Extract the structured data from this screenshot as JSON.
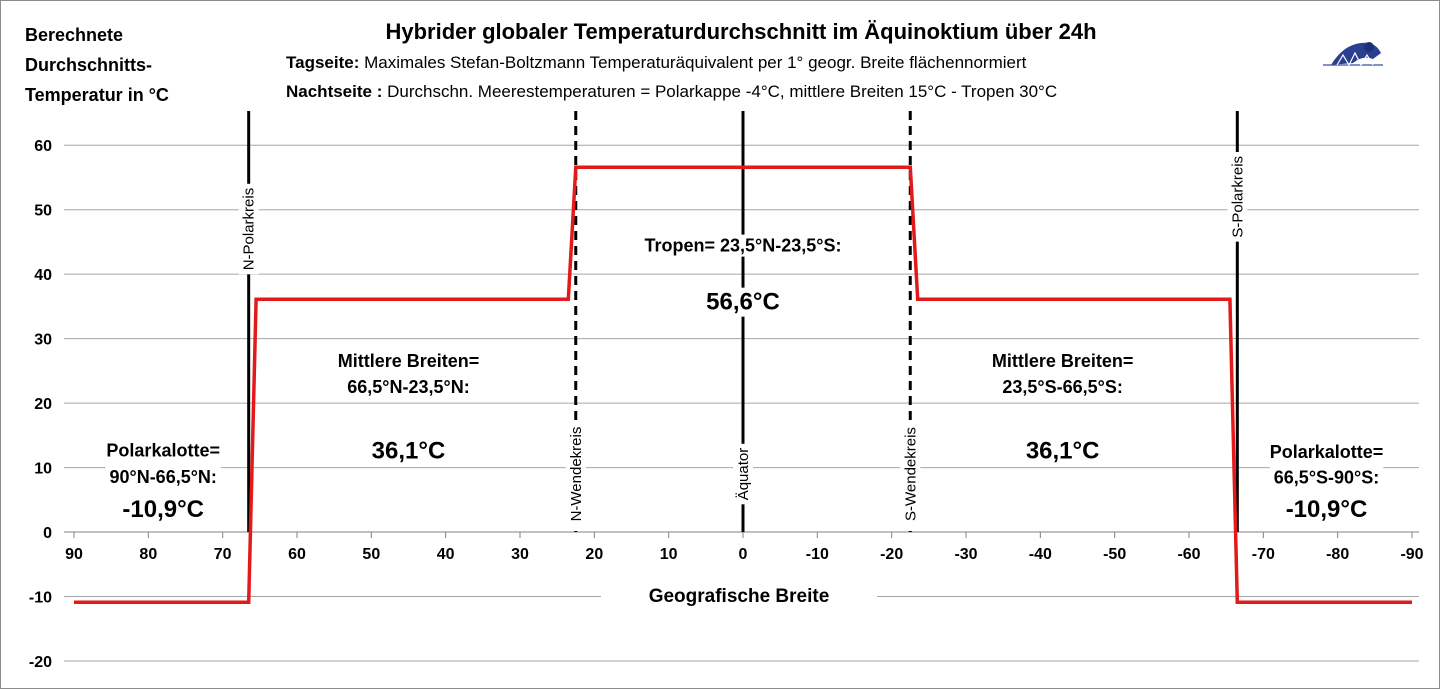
{
  "chart_data": {
    "type": "line",
    "title": "Hybrider globaler Temperaturdurchschnitt im Äquinoktium über 24h",
    "subtitle1_label": "Tagseite:",
    "subtitle1_text": " Maximales Stefan-Boltzmann Temperaturäquivalent per 1° geogr. Breite flächennormiert",
    "subtitle2_label": "Nachtseite :",
    "subtitle2_text": " Durchschn. Meerestemperaturen = Polarkappe -4°C, mittlere Breiten 15°C - Tropen 30°C",
    "ylabel_lines": [
      "Berechnete",
      "Durchschnitts-",
      "Temperatur in °C"
    ],
    "xlabel": "Geografische  Breite",
    "xlim": [
      90,
      -90
    ],
    "ylim": [
      -20,
      65
    ],
    "x_ticks": [
      90,
      80,
      70,
      60,
      50,
      40,
      30,
      20,
      10,
      0,
      -10,
      -20,
      -30,
      -40,
      -50,
      -60,
      -70,
      -80,
      -90
    ],
    "y_ticks": [
      -20,
      -10,
      0,
      10,
      20,
      30,
      40,
      50,
      60
    ],
    "grid": true,
    "series": [
      {
        "color": "#e31a1c",
        "x": [
          90,
          66.5,
          65.5,
          23.5,
          22.5,
          -22.5,
          -23.5,
          -65.5,
          -66.5,
          -90
        ],
        "y": [
          -10.9,
          -10.9,
          36.1,
          36.1,
          56.6,
          56.6,
          36.1,
          36.1,
          -10.9,
          -10.9
        ]
      }
    ],
    "reference_lines": [
      {
        "x": 66.5,
        "label": "N-Polarkreis",
        "style": "solid",
        "label_at": 47
      },
      {
        "x": 22.5,
        "label": "N-Wendekreis",
        "style": "dashed",
        "label_at": 9
      },
      {
        "x": 0,
        "label": "Äquator",
        "style": "solid",
        "label_at": 9
      },
      {
        "x": -22.5,
        "label": "S-Wendekreis",
        "style": "dashed",
        "label_at": 9
      },
      {
        "x": -66.5,
        "label": "S-Polarkreis",
        "style": "solid",
        "label_at": 52
      }
    ],
    "annotations": [
      {
        "x": 78,
        "y": 11.7,
        "text": "Polarkalotte=",
        "size": "normal"
      },
      {
        "x": 78,
        "y": 7.6,
        "text": "90°N-66,5°N:",
        "size": "normal"
      },
      {
        "x": 78,
        "y": 2.3,
        "text": "-10,9°C",
        "size": "big"
      },
      {
        "x": 45,
        "y": 25.6,
        "text": "Mittlere Breiten=",
        "size": "normal"
      },
      {
        "x": 45,
        "y": 21.6,
        "text": "66,5°N-23,5°N:",
        "size": "normal"
      },
      {
        "x": 45,
        "y": 11.4,
        "text": "36,1°C",
        "size": "big"
      },
      {
        "x": 0,
        "y": 43.5,
        "text": "Tropen= 23,5°N-23,5°S:",
        "size": "normal"
      },
      {
        "x": 0,
        "y": 34.5,
        "text": "56,6°C",
        "size": "big"
      },
      {
        "x": -43,
        "y": 25.6,
        "text": "Mittlere Breiten=",
        "size": "normal"
      },
      {
        "x": -43,
        "y": 21.6,
        "text": "23,5°S-66,5°S:",
        "size": "normal"
      },
      {
        "x": -43,
        "y": 11.4,
        "text": "36,1°C",
        "size": "big"
      },
      {
        "x": -78.5,
        "y": 11.5,
        "text": "Polarkalotte=",
        "size": "normal"
      },
      {
        "x": -78.5,
        "y": 7.5,
        "text": "66,5°S-90°S:",
        "size": "normal"
      },
      {
        "x": -78.5,
        "y": 2.3,
        "text": "-10,9°C",
        "size": "big"
      }
    ]
  }
}
